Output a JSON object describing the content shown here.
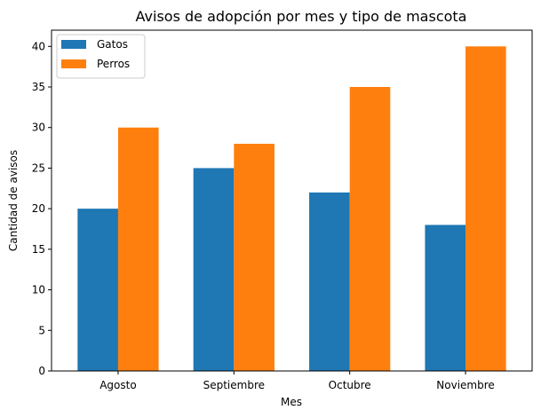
{
  "chart_data": {
    "type": "bar",
    "title": "Avisos de adopción por mes y tipo de mascota",
    "xlabel": "Mes",
    "ylabel": "Cantidad de avisos",
    "categories": [
      "Agosto",
      "Septiembre",
      "Octubre",
      "Noviembre"
    ],
    "series": [
      {
        "name": "Gatos",
        "values": [
          20,
          25,
          22,
          18
        ],
        "color": "#1f77b4"
      },
      {
        "name": "Perros",
        "values": [
          30,
          28,
          35,
          40
        ],
        "color": "#ff7f0e"
      }
    ],
    "ylim": [
      0,
      42
    ],
    "yticks": [
      0,
      5,
      10,
      15,
      20,
      25,
      30,
      35,
      40
    ],
    "grid": false,
    "legend_position": "top-left"
  }
}
